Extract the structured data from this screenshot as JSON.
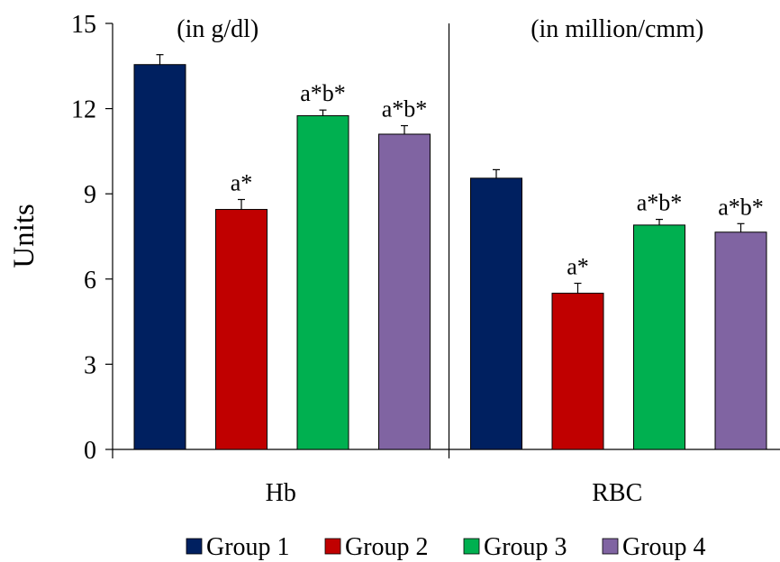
{
  "chart_data": {
    "type": "bar",
    "categories": [
      "Hb",
      "RBC"
    ],
    "panel_units": [
      "(in g/dl)",
      "(in million/cmm)"
    ],
    "series": [
      {
        "name": "Group 1",
        "color": "#002060",
        "values": [
          13.55,
          9.55
        ],
        "errors": [
          0.35,
          0.3
        ],
        "labels": [
          "",
          ""
        ]
      },
      {
        "name": "Group 2",
        "color": "#C00000",
        "values": [
          8.45,
          5.5
        ],
        "errors": [
          0.35,
          0.35
        ],
        "labels": [
          "a*",
          "a*"
        ]
      },
      {
        "name": "Group 3",
        "color": "#00B050",
        "values": [
          11.75,
          7.9
        ],
        "errors": [
          0.2,
          0.2
        ],
        "labels": [
          "a*b*",
          "a*b*"
        ]
      },
      {
        "name": "Group 4",
        "color": "#8064A2",
        "values": [
          11.1,
          7.65
        ],
        "errors": [
          0.3,
          0.3
        ],
        "labels": [
          "a*b*",
          "a*b*"
        ]
      }
    ],
    "ylabel": "Units",
    "ylim": [
      0,
      15
    ],
    "yticks": [
      0,
      3,
      6,
      9,
      12,
      15
    ],
    "grid": false,
    "legend": "bottom"
  }
}
